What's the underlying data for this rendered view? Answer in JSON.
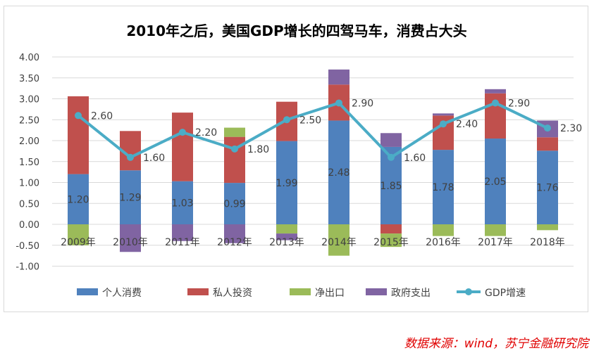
{
  "chart_data": {
    "type": "bar",
    "stacked": true,
    "title": "2010年之后，美国GDP增长的四驾马车，消费占大头",
    "categories": [
      "2009年",
      "2010年",
      "2011年",
      "2012年",
      "2013年",
      "2014年",
      "2015年",
      "2016年",
      "2017年",
      "2018年"
    ],
    "ylim": [
      -1.0,
      4.0
    ],
    "yticks": [
      "4.00",
      "3.50",
      "3.00",
      "2.50",
      "2.00",
      "1.50",
      "1.00",
      "0.50",
      "0.00",
      "-0.50",
      "-1.00"
    ],
    "ytick_values": [
      4.0,
      3.5,
      3.0,
      2.5,
      2.0,
      1.5,
      1.0,
      0.5,
      0.0,
      -0.5,
      -1.0
    ],
    "grid": true,
    "legend_position": "bottom",
    "series": [
      {
        "name": "个人消费",
        "color": "#4f81bd",
        "values": [
          1.2,
          1.29,
          1.03,
          0.99,
          1.99,
          2.48,
          1.85,
          1.78,
          2.05,
          1.76
        ],
        "labels": [
          "1.20",
          "1.29",
          "1.03",
          "0.99",
          "1.99",
          "2.48",
          "1.85",
          "1.78",
          "2.05",
          "1.76"
        ]
      },
      {
        "name": "私人投资",
        "color": "#c0504d",
        "values": [
          1.86,
          0.94,
          1.64,
          1.1,
          0.94,
          0.86,
          -0.22,
          0.82,
          1.08,
          0.32
        ]
      },
      {
        "name": "净出口",
        "color": "#9bbb59",
        "values": [
          -0.5,
          0.0,
          0.0,
          0.22,
          -0.22,
          -0.75,
          -0.32,
          -0.28,
          -0.28,
          -0.14
        ]
      },
      {
        "name": "政府支出",
        "color": "#8064a2",
        "values": [
          0.0,
          -0.66,
          -0.4,
          -0.45,
          -0.16,
          0.36,
          0.33,
          0.05,
          0.1,
          0.4
        ]
      }
    ],
    "line": {
      "name": "GDP增速",
      "color": "#4bacc6",
      "values": [
        2.6,
        1.6,
        2.2,
        1.8,
        2.5,
        2.9,
        1.6,
        2.4,
        2.9,
        2.3
      ],
      "labels": [
        "2.60",
        "1.60",
        "2.20",
        "1.80",
        "2.50",
        "2.90",
        "1.60",
        "2.40",
        "2.90",
        "2.30"
      ]
    }
  },
  "source": "数据来源：wind，苏宁金融研究院"
}
